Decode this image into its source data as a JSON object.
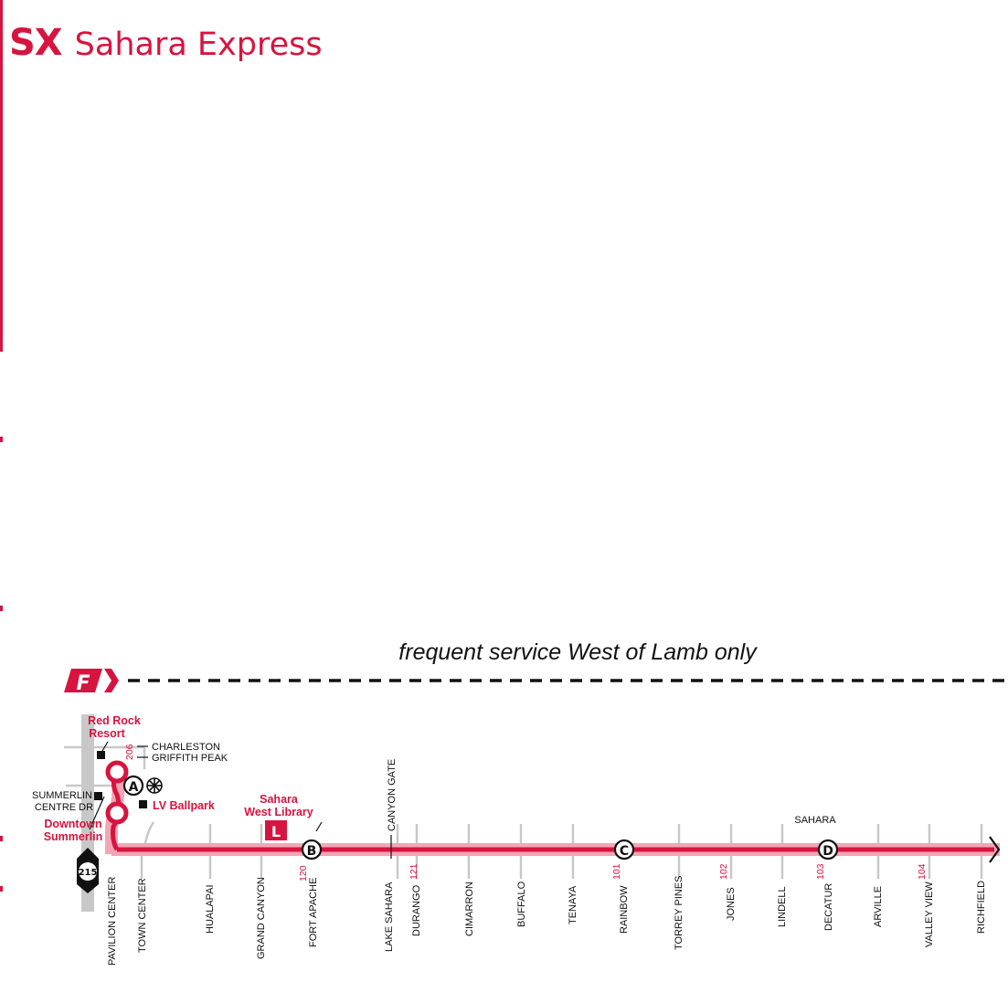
{
  "header": {
    "route_code": "SX",
    "route_name": "Sahara Express"
  },
  "frequent_service": {
    "badge": "F",
    "note": "frequent service West of Lamb only"
  },
  "colors": {
    "route": "#d7143f",
    "route_light": "#f2a6b5",
    "road": "#c8c8c8",
    "text": "#111111"
  },
  "freeway_shield": {
    "number": "215"
  },
  "stops": [
    {
      "label": "PAVILION CENTER"
    },
    {
      "label": "TOWN CENTER"
    },
    {
      "label": "HUALAPAI"
    },
    {
      "label": "GRAND CANYON"
    },
    {
      "label": "FORT APACHE"
    },
    {
      "label": "LAKE SAHARA"
    },
    {
      "label": "DURANGO"
    },
    {
      "label": "CIMARRON"
    },
    {
      "label": "BUFFALO"
    },
    {
      "label": "TENAYA"
    },
    {
      "label": "RAINBOW"
    },
    {
      "label": "TORREY PINES"
    },
    {
      "label": "JONES"
    },
    {
      "label": "LINDELL"
    },
    {
      "label": "DECATUR"
    },
    {
      "label": "ARVILLE"
    },
    {
      "label": "VALLEY VIEW"
    },
    {
      "label": "RICHFIELD"
    }
  ],
  "upper_streets": {
    "canyon_gate": "CANYON GATE",
    "sahara": "SAHARA",
    "charleston": "CHARLESTON",
    "griffith_peak": "GRIFFITH PEAK",
    "summerlin_centre_1": "SUMMERLIN",
    "summerlin_centre_2": "CENTRE DR"
  },
  "route_numbers": [
    "206",
    "120",
    "121",
    "101",
    "102",
    "103",
    "104"
  ],
  "timepoints": [
    "A",
    "B",
    "C",
    "D"
  ],
  "landmarks": {
    "red_rock_1": "Red Rock",
    "red_rock_2": "Resort",
    "downtown_summerlin_1": "Downtown",
    "downtown_summerlin_2": "Summerlin",
    "lv_ballpark": "LV Ballpark",
    "library_1": "Sahara",
    "library_2": "West Library",
    "library_icon": "L"
  }
}
